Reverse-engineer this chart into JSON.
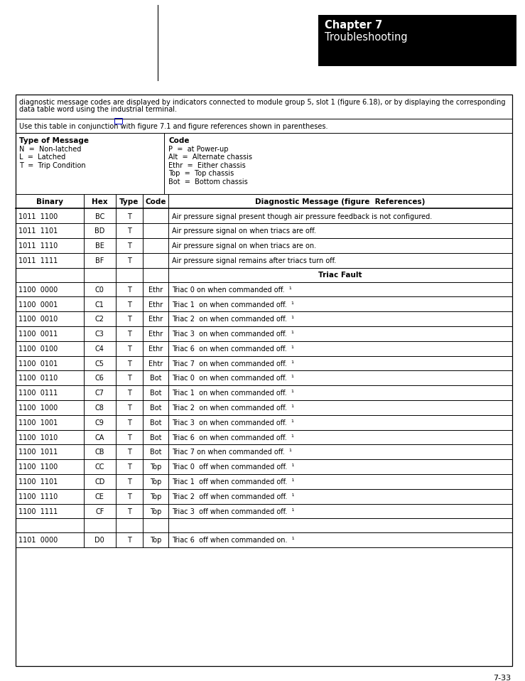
{
  "page_bg": "#ffffff",
  "chapter_title": "Chapter 7",
  "chapter_subtitle": "Troubleshooting",
  "intro_text_line1": "diagnostic message codes are displayed by indicators connected to module group 5, slot 1 (figure 6.18), or by displaying the corresponding",
  "intro_text_line2": "data table word using the industrial terminal.",
  "use_text": "Use this table in conjunction with figure 7.1 and figure references shown in parentheses.",
  "type_header": "Type of Message",
  "type_items": [
    "N  =  Non-latched",
    "L  =  Latched",
    "T  =  Trip Condition"
  ],
  "code_header": "Code",
  "code_items": [
    "P  =  at Power-up",
    "Alt  =  Alternate chassis",
    "Ethr  =  Either chassis",
    "Top  =  Top chassis",
    "Bot  =  Bottom chassis"
  ],
  "col_headers": [
    "Binary",
    "Hex",
    "Type",
    "Code",
    "Diagnostic Message (figure  References)"
  ],
  "table_rows": [
    [
      "1011  1100",
      "BC",
      "T",
      "",
      "Air pressure signal present though air pressure feedback is not configured.",
      "normal"
    ],
    [
      "1011  1101",
      "BD",
      "T",
      "",
      "Air pressure signal on when triacs are off.",
      "normal"
    ],
    [
      "1011  1110",
      "BE",
      "T",
      "",
      "Air pressure signal on when triacs are on.",
      "normal"
    ],
    [
      "1011  1111",
      "BF",
      "T",
      "",
      "Air pressure signal remains after triacs turn off.",
      "normal"
    ],
    [
      "",
      "",
      "",
      "",
      "Triac Fault",
      "header"
    ],
    [
      "1100  0000",
      "C0",
      "T",
      "Ethr",
      "Triac 0 on when commanded off.  ¹",
      "normal"
    ],
    [
      "1100  0001",
      "C1",
      "T",
      "Ethr",
      "Triac 1  on when commanded off.  ¹",
      "normal"
    ],
    [
      "1100  0010",
      "C2",
      "T",
      "Ethr",
      "Triac 2  on when commanded off.  ¹",
      "normal"
    ],
    [
      "1100  0011",
      "C3",
      "T",
      "Ethr",
      "Triac 3  on when commanded off.  ¹",
      "normal"
    ],
    [
      "1100  0100",
      "C4",
      "T",
      "Ethr",
      "Triac 6  on when commanded off.  ¹",
      "normal"
    ],
    [
      "1100  0101",
      "C5",
      "T",
      "Ehtr",
      "Triac 7  on when commanded off.  ¹",
      "normal"
    ],
    [
      "1100  0110",
      "C6",
      "T",
      "Bot",
      "Triac 0  on when commanded off.  ¹",
      "normal"
    ],
    [
      "1100  0111",
      "C7",
      "T",
      "Bot",
      "Triac 1  on when commanded off.  ¹",
      "normal"
    ],
    [
      "1100  1000",
      "C8",
      "T",
      "Bot",
      "Triac 2  on when commanded off.  ¹",
      "normal"
    ],
    [
      "1100  1001",
      "C9",
      "T",
      "Bot",
      "Triac 3  on when commanded off.  ¹",
      "normal"
    ],
    [
      "1100  1010",
      "CA",
      "T",
      "Bot",
      "Triac 6  on when commanded off.  ¹",
      "normal"
    ],
    [
      "1100  1011",
      "CB",
      "T",
      "Bot",
      "Triac 7 on when commanded off.  ¹",
      "normal"
    ],
    [
      "1100  1100",
      "CC",
      "T",
      "Top",
      "Triac 0  off when commanded off.  ¹",
      "normal"
    ],
    [
      "1100  1101",
      "CD",
      "T",
      "Top",
      "Triac 1  off when commanded off.  ¹",
      "normal"
    ],
    [
      "1100  1110",
      "CE",
      "T",
      "Top",
      "Triac 2  off when commanded off.  ¹",
      "normal"
    ],
    [
      "1100  1111",
      "CF",
      "T",
      "Top",
      "Triac 3  off when commanded off.  ¹",
      "normal"
    ],
    [
      "",
      "",
      "",
      "",
      "",
      "blank"
    ],
    [
      "1101  0000",
      "D0",
      "T",
      "Top",
      "Triac 6  off when commanded on.  ¹",
      "normal"
    ]
  ],
  "footer_text": "7-33"
}
